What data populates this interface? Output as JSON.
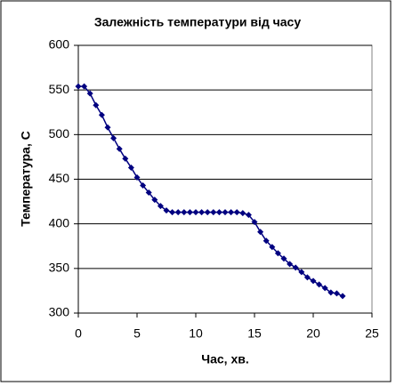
{
  "chart_data": {
    "type": "line",
    "title": "Залежність температури від часу",
    "x_label": "Час, хв.",
    "y_label": "Температура, С",
    "x": [
      0,
      0.5,
      1,
      1.5,
      2,
      2.5,
      3,
      3.5,
      4,
      4.5,
      5,
      5.5,
      6,
      6.5,
      7,
      7.5,
      8,
      8.5,
      9,
      9.5,
      10,
      10.5,
      11,
      11.5,
      12,
      12.5,
      13,
      13.5,
      14,
      14.5,
      15,
      15.5,
      16,
      16.5,
      17,
      17.5,
      18,
      18.5,
      19,
      19.5,
      20,
      20.5,
      21,
      21.5,
      22,
      22.5
    ],
    "values": [
      554,
      554,
      546,
      533,
      522,
      508,
      496,
      484,
      473,
      463,
      452,
      443,
      435,
      427,
      420,
      415,
      413,
      413,
      413,
      413,
      413,
      413,
      413,
      413,
      413,
      413,
      413,
      413,
      412,
      410,
      402,
      391,
      381,
      374,
      367,
      361,
      355,
      351,
      346,
      340,
      336,
      332,
      328,
      323,
      322,
      319
    ],
    "color": "#000080",
    "xlim": [
      0,
      25
    ],
    "xticks": [
      0,
      5,
      10,
      15,
      20,
      25
    ],
    "ylim": [
      300,
      600
    ],
    "yticks": [
      300,
      350,
      400,
      450,
      500,
      550,
      600
    ],
    "grid": true
  }
}
